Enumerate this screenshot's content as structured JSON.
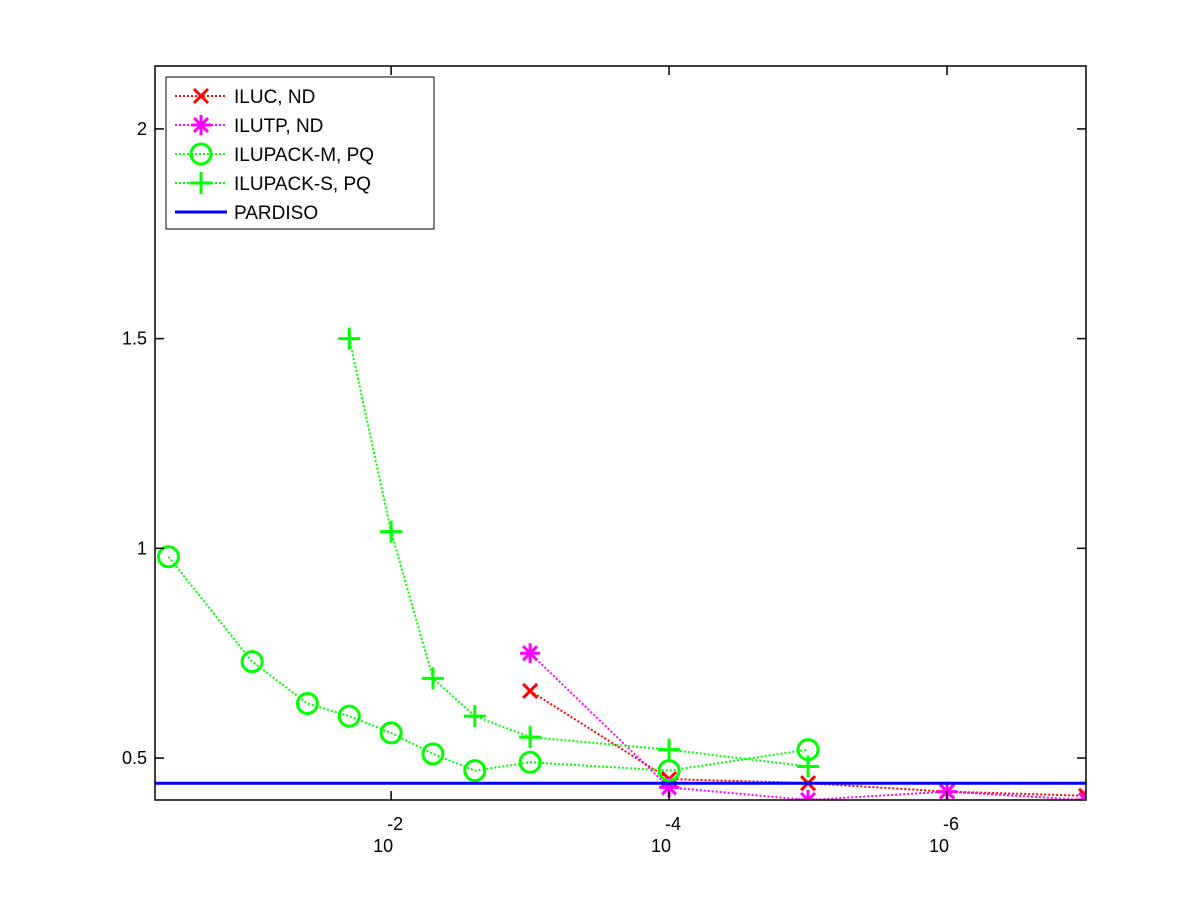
{
  "chart_data": {
    "type": "line",
    "title": "",
    "xlabel": "",
    "ylabel": "",
    "x_scale": "log-reversed",
    "xlim": [
      0.5,
      1e-07
    ],
    "ylim": [
      0.4,
      2.15
    ],
    "grid": false,
    "legend_position": "top-left",
    "x_ticks": [
      {
        "value": 0.01,
        "base": "10",
        "exponent": "-2"
      },
      {
        "value": 0.0001,
        "base": "10",
        "exponent": "-4"
      },
      {
        "value": 1e-06,
        "base": "10",
        "exponent": "-6"
      }
    ],
    "y_ticks": [
      {
        "value": 0.5,
        "label": "0.5"
      },
      {
        "value": 1,
        "label": "1"
      },
      {
        "value": 1.5,
        "label": "1.5"
      },
      {
        "value": 2,
        "label": "2"
      }
    ],
    "series": [
      {
        "name": "ILUC,  ND",
        "color": "#ff0000",
        "marker": "x",
        "line_style": "dotted",
        "points": [
          [
            0.001,
            0.66
          ],
          [
            0.0001,
            0.45
          ],
          [
            1e-05,
            0.44
          ],
          [
            1e-06,
            0.42
          ],
          [
            1e-07,
            0.41
          ]
        ]
      },
      {
        "name": "ILUTP,  ND",
        "color": "#ff00ff",
        "marker": "asterisk",
        "line_style": "dotted",
        "points": [
          [
            0.001,
            0.75
          ],
          [
            0.0001,
            0.43
          ],
          [
            1e-05,
            0.4
          ],
          [
            1e-06,
            0.42
          ],
          [
            1e-07,
            0.4
          ]
        ]
      },
      {
        "name": "ILUPACK-M, PQ",
        "color": "#00ff00",
        "marker": "circle",
        "line_style": "dotted",
        "points": [
          [
            0.4,
            0.98
          ],
          [
            0.1,
            0.73
          ],
          [
            0.04,
            0.63
          ],
          [
            0.02,
            0.6
          ],
          [
            0.01,
            0.56
          ],
          [
            0.005,
            0.51
          ],
          [
            0.0025,
            0.47
          ],
          [
            0.001,
            0.49
          ],
          [
            0.0001,
            0.47
          ],
          [
            1e-05,
            0.52
          ]
        ]
      },
      {
        "name": "ILUPACK-S, PQ",
        "color": "#00ff00",
        "marker": "plus",
        "line_style": "dotted",
        "points": [
          [
            0.02,
            1.5
          ],
          [
            0.01,
            1.04
          ],
          [
            0.005,
            0.69
          ],
          [
            0.0025,
            0.6
          ],
          [
            0.001,
            0.55
          ],
          [
            0.0001,
            0.52
          ],
          [
            1e-05,
            0.48
          ]
        ]
      },
      {
        "name": "PARDISO",
        "color": "#0000ff",
        "marker": "none",
        "line_style": "solid",
        "points": [
          [
            0.5,
            0.44
          ],
          [
            1e-07,
            0.44
          ]
        ]
      }
    ]
  }
}
